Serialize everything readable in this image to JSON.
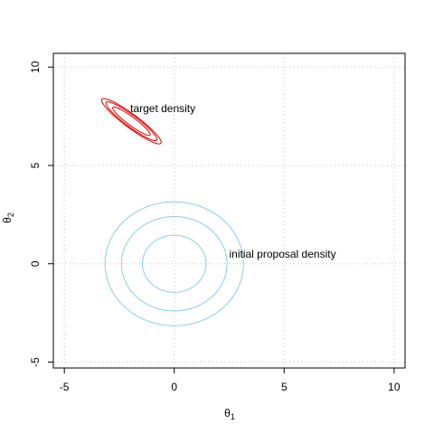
{
  "chart_data": {
    "type": "contour",
    "xlabel_main": "θ",
    "xlabel_sub": "1",
    "ylabel_main": "θ",
    "ylabel_sub": "2",
    "xlim": [
      -5.5,
      10.5
    ],
    "ylim": [
      -5.3,
      10.7
    ],
    "xticks": [
      -5,
      0,
      5,
      10
    ],
    "yticks": [
      -5,
      0,
      5,
      10
    ],
    "x_tick_labels": [
      "-5",
      "0",
      "5",
      "10"
    ],
    "y_tick_labels": [
      "-5",
      "0",
      "5",
      "10"
    ],
    "grid": true,
    "series": [
      {
        "kind": "target",
        "color": "#dd0000",
        "center": [
          -1.95,
          7.25
        ],
        "major_axis_angle_deg": -40,
        "contours": [
          {
            "semi_major": 1.1,
            "semi_minor": 0.2
          },
          {
            "semi_major": 1.5,
            "semi_minor": 0.28
          },
          {
            "semi_major": 1.75,
            "semi_minor": 0.33
          }
        ]
      },
      {
        "kind": "proposal",
        "color": "#87ceeb",
        "center": [
          0,
          0
        ],
        "major_axis_angle_deg": 0,
        "contours": [
          {
            "semi_major": 1.45,
            "semi_minor": 1.45
          },
          {
            "semi_major": 2.4,
            "semi_minor": 2.4
          },
          {
            "semi_major": 3.15,
            "semi_minor": 3.15
          }
        ]
      }
    ],
    "annotations": [
      {
        "text": "target density",
        "x": -2.0,
        "y": 7.9,
        "anchor": "start"
      },
      {
        "text": "initial proposal density",
        "x": 2.5,
        "y": 0.5,
        "anchor": "start"
      }
    ]
  }
}
